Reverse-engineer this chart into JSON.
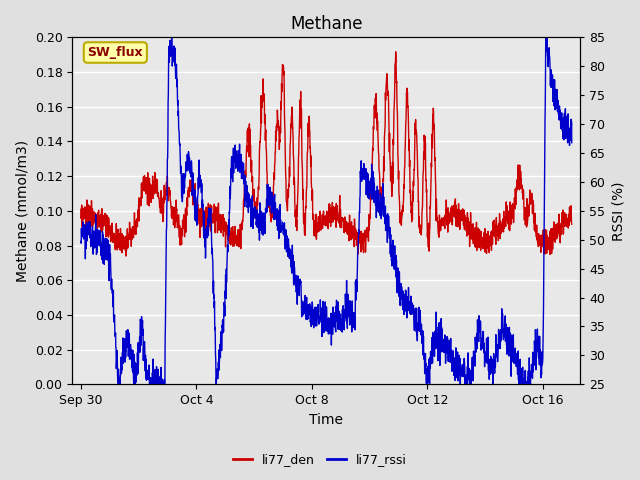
{
  "title": "Methane",
  "xlabel": "Time",
  "ylabel_left": "Methane (mmol/m3)",
  "ylabel_right": "RSSI (%)",
  "ylim_left": [
    0.0,
    0.2
  ],
  "ylim_right": [
    25,
    85
  ],
  "yticks_left": [
    0.0,
    0.02,
    0.04,
    0.06,
    0.08,
    0.1,
    0.12,
    0.14,
    0.16,
    0.18,
    0.2
  ],
  "yticks_right": [
    25,
    30,
    35,
    40,
    45,
    50,
    55,
    60,
    65,
    70,
    75,
    80,
    85
  ],
  "xtick_positions": [
    0,
    4,
    8,
    12,
    16
  ],
  "xtick_labels": [
    "Sep 30",
    "Oct 4",
    "Oct 8",
    "Oct 12",
    "Oct 16"
  ],
  "xlim": [
    -0.3,
    17.3
  ],
  "color_red": "#cc0000",
  "color_blue": "#0000cc",
  "legend_label_red": "li77_den",
  "legend_label_blue": "li77_rssi",
  "annotation_text": "SW_flux",
  "annotation_bg": "#ffffaa",
  "annotation_border": "#bbaa00",
  "fig_bg": "#e0e0e0",
  "plot_bg": "#e8e8e8",
  "grid_color": "#ffffff",
  "title_fontsize": 12,
  "label_fontsize": 10,
  "tick_fontsize": 9,
  "linewidth": 1.0
}
